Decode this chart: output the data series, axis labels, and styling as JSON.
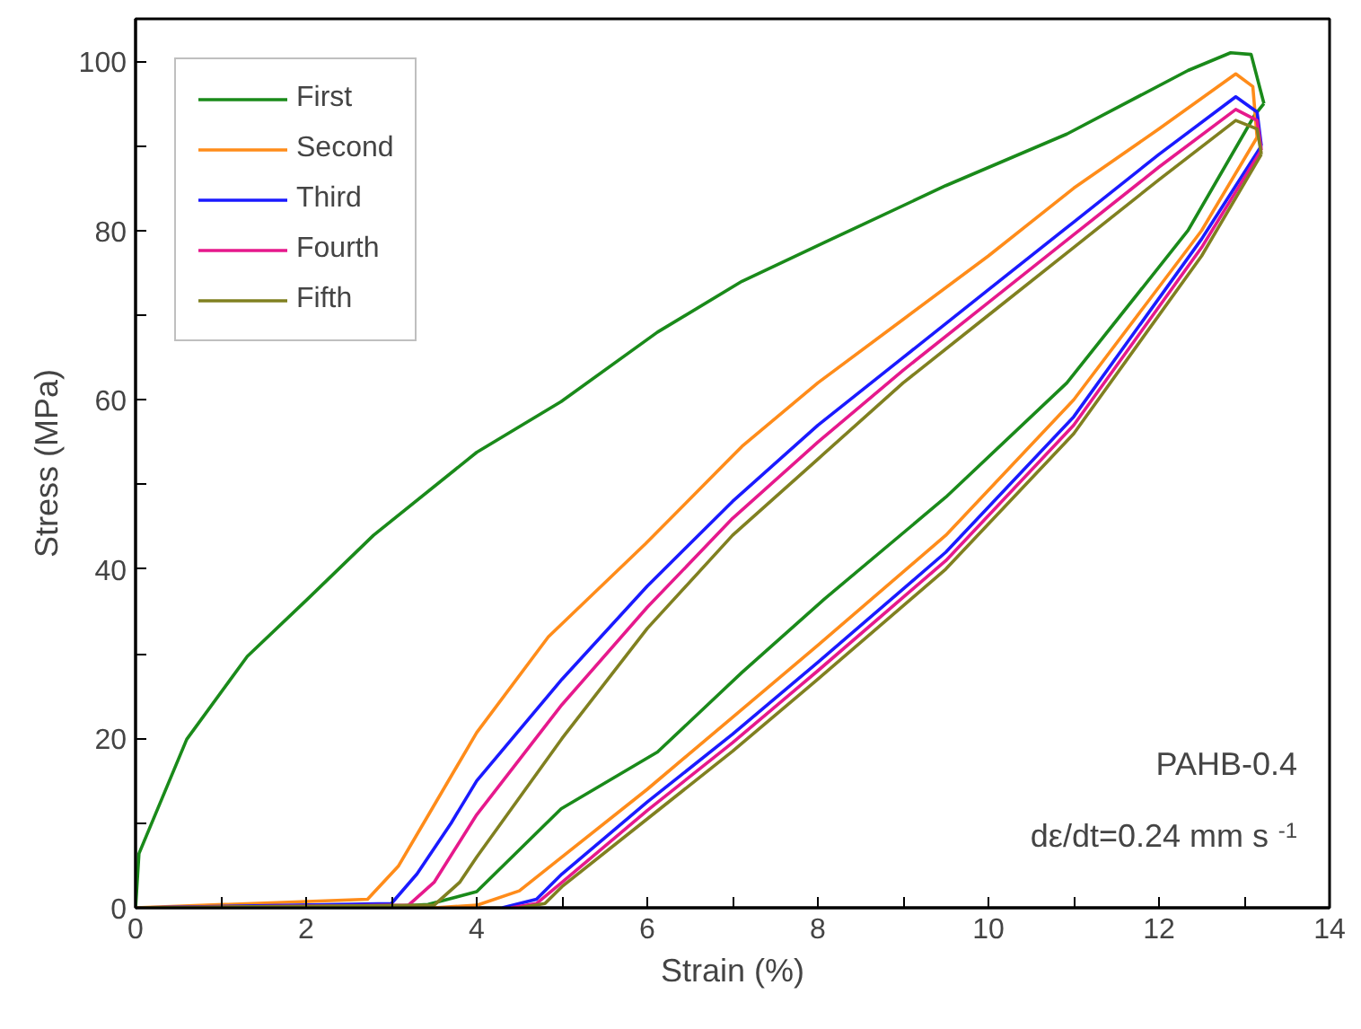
{
  "chart_data": {
    "type": "line",
    "xlabel": "Strain (%)",
    "ylabel": "Stress (MPa)",
    "xlim": [
      0,
      14
    ],
    "ylim": [
      0,
      105
    ],
    "xticks": [
      0,
      {
        "value": 1,
        "label": null
      },
      2,
      {
        "value": 3,
        "label": null
      },
      4,
      {
        "value": 5,
        "label": null
      },
      6,
      {
        "value": 7,
        "label": null
      },
      8,
      {
        "value": 9,
        "label": null
      },
      10,
      {
        "value": 11,
        "label": null
      },
      12,
      {
        "value": 13,
        "label": null
      },
      14
    ],
    "yticks": [
      0,
      {
        "value": 10,
        "label": null
      },
      20,
      {
        "value": 30,
        "label": null
      },
      40,
      {
        "value": 50,
        "label": null
      },
      60,
      {
        "value": 70,
        "label": null
      },
      80,
      {
        "value": 90,
        "label": null
      },
      100
    ],
    "grid": false,
    "legend": "top left",
    "line_style": "solid",
    "marker": "none",
    "annotations": [
      "PAHB-0.4",
      "dε/dt=0.24 mm s$^{-1}$"
    ],
    "series": [
      {
        "name": "First",
        "color": "#1a8a1a",
        "x": [
          0,
          0.04,
          0.6,
          1.31,
          2.02,
          2.79,
          4.0,
          4.99,
          6.12,
          7.11,
          8.08,
          9.5,
          10.92,
          12.34,
          12.84,
          13.08,
          13.23
        ],
        "values": [
          0,
          6.4,
          19.9,
          29.7,
          36.5,
          44,
          53.8,
          59.8,
          68,
          74,
          78.6,
          85.3,
          91.4,
          98.9,
          101,
          100.8,
          95
        ]
      },
      {
        "color": "#1a8a1a",
        "x": [
          2.72,
          3.43,
          4.0,
          4.99,
          6.12,
          7.11,
          8.08,
          9.5,
          10.92,
          12.34,
          13.12,
          13.23
        ],
        "values": [
          0,
          0.4,
          1.9,
          11.7,
          18.4,
          27.8,
          36.5,
          48.5,
          62,
          80,
          93.6,
          95
        ]
      },
      {
        "name": "Second",
        "color": "#ff8c1a",
        "x": [
          0,
          2.72,
          3.08,
          3.43,
          4.0,
          4.84,
          5.98,
          7.11,
          8,
          9,
          10,
          11,
          12,
          12.9,
          13.1,
          13.15
        ],
        "values": [
          0,
          1,
          4.9,
          10.9,
          20.7,
          32,
          43,
          54.5,
          62,
          69.5,
          77,
          85,
          92,
          98.5,
          97,
          91
        ]
      },
      {
        "color": "#ff8c1a",
        "x": [
          3.5,
          4,
          4.5,
          5,
          6,
          7,
          8,
          9.5,
          11,
          12.5,
          13.15
        ],
        "values": [
          0,
          0.3,
          2,
          6,
          14,
          22.5,
          31,
          44,
          60,
          80,
          91
        ]
      },
      {
        "name": "Third",
        "color": "#1a1aff",
        "x": [
          0,
          3.0,
          3.3,
          3.7,
          4,
          5,
          6,
          7,
          8,
          9,
          10,
          11,
          12,
          12.9,
          13.15,
          13.2
        ],
        "values": [
          0,
          0.5,
          4,
          10,
          15,
          27,
          38,
          48,
          57,
          65,
          73,
          81,
          89,
          95.8,
          94,
          90
        ]
      },
      {
        "color": "#1a1aff",
        "x": [
          4.3,
          4.7,
          5,
          6,
          7,
          8,
          9.5,
          11,
          12.5,
          13.2
        ],
        "values": [
          0,
          1,
          4,
          12.5,
          20.5,
          29,
          42,
          58,
          79,
          90
        ]
      },
      {
        "name": "Fourth",
        "color": "#e6198c",
        "x": [
          0,
          3.2,
          3.5,
          4,
          5,
          6,
          7,
          8,
          9,
          10,
          11,
          12,
          12.9,
          13.15,
          13.2
        ],
        "values": [
          0,
          0.3,
          3,
          11,
          24,
          35.5,
          46,
          55,
          63.5,
          71.5,
          79.5,
          87.5,
          94.3,
          93,
          89.5
        ]
      },
      {
        "color": "#e6198c",
        "x": [
          4.4,
          4.7,
          5,
          6,
          7,
          8,
          9.5,
          11,
          12.5,
          13.2
        ],
        "values": [
          0,
          0.5,
          3,
          11.5,
          19.5,
          28,
          41,
          57,
          78,
          89.5
        ]
      },
      {
        "name": "Fifth",
        "color": "#808020",
        "x": [
          0,
          3.5,
          3.8,
          4,
          5,
          6,
          7,
          8,
          9,
          10,
          11,
          12,
          12.9,
          13.15,
          13.2
        ],
        "values": [
          0,
          0.3,
          3,
          6,
          20,
          33,
          44,
          53,
          62,
          70,
          78,
          86,
          93,
          92,
          89
        ]
      },
      {
        "color": "#808020",
        "x": [
          4.5,
          4.8,
          5,
          6,
          7,
          8,
          9.5,
          11,
          12.5,
          13.2
        ],
        "values": [
          0,
          0.5,
          2.5,
          10.5,
          18.5,
          27,
          40,
          56,
          77,
          89
        ]
      }
    ]
  }
}
